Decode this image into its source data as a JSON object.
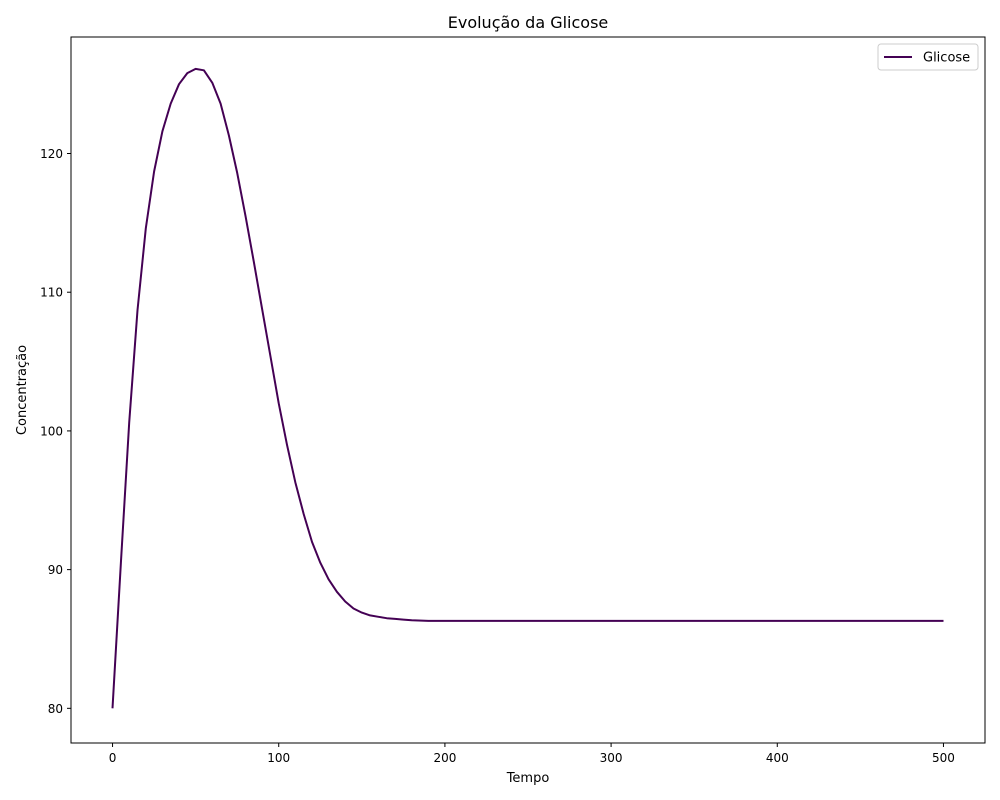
{
  "chart_data": {
    "type": "line",
    "title": "Evolução da Glicose",
    "xlabel": "Tempo",
    "ylabel": "Concentração",
    "xlim": [
      -25,
      525
    ],
    "ylim": [
      77.5,
      128.4
    ],
    "xticks": [
      0,
      100,
      200,
      300,
      400,
      500
    ],
    "yticks": [
      80,
      90,
      100,
      110,
      120
    ],
    "grid": false,
    "legend_position": "top-right",
    "series": [
      {
        "name": "Glicose",
        "color": "#440154",
        "x": [
          0,
          5,
          10,
          15,
          20,
          25,
          30,
          35,
          40,
          45,
          50,
          55,
          60,
          65,
          70,
          75,
          80,
          85,
          90,
          95,
          100,
          105,
          110,
          115,
          120,
          125,
          130,
          135,
          140,
          145,
          150,
          155,
          160,
          165,
          170,
          175,
          180,
          190,
          200,
          220,
          250,
          300,
          350,
          400,
          450,
          500
        ],
        "y": [
          80.0,
          90.5,
          100.6,
          108.7,
          114.6,
          118.7,
          121.6,
          123.6,
          125.0,
          125.8,
          126.1,
          126.0,
          125.1,
          123.6,
          121.3,
          118.6,
          115.5,
          112.2,
          108.8,
          105.4,
          102.0,
          99.0,
          96.3,
          94.0,
          92.0,
          90.5,
          89.3,
          88.4,
          87.7,
          87.2,
          86.9,
          86.7,
          86.6,
          86.5,
          86.45,
          86.4,
          86.35,
          86.3,
          86.3,
          86.3,
          86.3,
          86.3,
          86.3,
          86.3,
          86.3,
          86.3
        ]
      }
    ]
  }
}
